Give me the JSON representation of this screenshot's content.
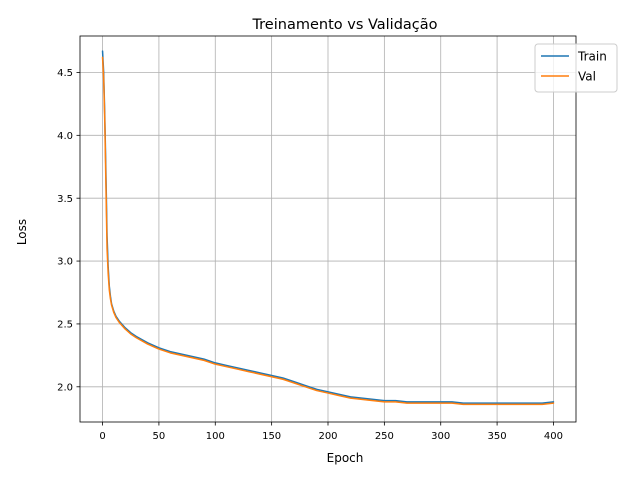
{
  "chart_data": {
    "type": "line",
    "title": "Treinamento vs Validação",
    "xlabel": "Epoch",
    "ylabel": "Loss",
    "xlim": [
      -20,
      420
    ],
    "ylim": [
      1.72,
      4.79
    ],
    "xticks": [
      0,
      50,
      100,
      150,
      200,
      250,
      300,
      350,
      400
    ],
    "yticks": [
      2.0,
      2.5,
      3.0,
      3.5,
      4.0,
      4.5
    ],
    "grid": true,
    "legend_position": "top-right",
    "series": [
      {
        "name": "Train",
        "color": "#1f77b4",
        "x": [
          0,
          1,
          2,
          3,
          4,
          5,
          6,
          7,
          8,
          10,
          12,
          15,
          20,
          25,
          30,
          40,
          50,
          60,
          70,
          80,
          90,
          100,
          110,
          120,
          130,
          140,
          150,
          160,
          170,
          180,
          190,
          200,
          210,
          220,
          230,
          240,
          250,
          260,
          270,
          280,
          290,
          300,
          310,
          320,
          330,
          340,
          350,
          360,
          370,
          380,
          390,
          400
        ],
        "values": [
          4.67,
          4.5,
          4.15,
          3.7,
          3.2,
          2.95,
          2.8,
          2.72,
          2.66,
          2.6,
          2.56,
          2.52,
          2.47,
          2.43,
          2.4,
          2.35,
          2.31,
          2.28,
          2.26,
          2.24,
          2.22,
          2.19,
          2.17,
          2.15,
          2.13,
          2.11,
          2.09,
          2.07,
          2.04,
          2.01,
          1.98,
          1.96,
          1.94,
          1.92,
          1.91,
          1.9,
          1.89,
          1.89,
          1.88,
          1.88,
          1.88,
          1.88,
          1.88,
          1.87,
          1.87,
          1.87,
          1.87,
          1.87,
          1.87,
          1.87,
          1.87,
          1.88
        ]
      },
      {
        "name": "Val",
        "color": "#ff7f0e",
        "x": [
          0,
          1,
          2,
          3,
          4,
          5,
          6,
          7,
          8,
          10,
          12,
          15,
          20,
          25,
          30,
          40,
          50,
          60,
          70,
          80,
          90,
          100,
          110,
          120,
          130,
          140,
          150,
          160,
          170,
          180,
          190,
          200,
          210,
          220,
          230,
          240,
          250,
          260,
          270,
          280,
          290,
          300,
          310,
          320,
          330,
          340,
          350,
          360,
          370,
          380,
          390,
          400
        ],
        "values": [
          4.62,
          4.45,
          4.1,
          3.6,
          3.1,
          2.9,
          2.77,
          2.7,
          2.65,
          2.59,
          2.55,
          2.51,
          2.46,
          2.42,
          2.39,
          2.34,
          2.3,
          2.27,
          2.25,
          2.23,
          2.21,
          2.18,
          2.16,
          2.14,
          2.12,
          2.1,
          2.08,
          2.06,
          2.03,
          2.0,
          1.97,
          1.95,
          1.93,
          1.91,
          1.9,
          1.89,
          1.88,
          1.88,
          1.87,
          1.87,
          1.87,
          1.87,
          1.87,
          1.86,
          1.86,
          1.86,
          1.86,
          1.86,
          1.86,
          1.86,
          1.86,
          1.87
        ]
      }
    ]
  }
}
